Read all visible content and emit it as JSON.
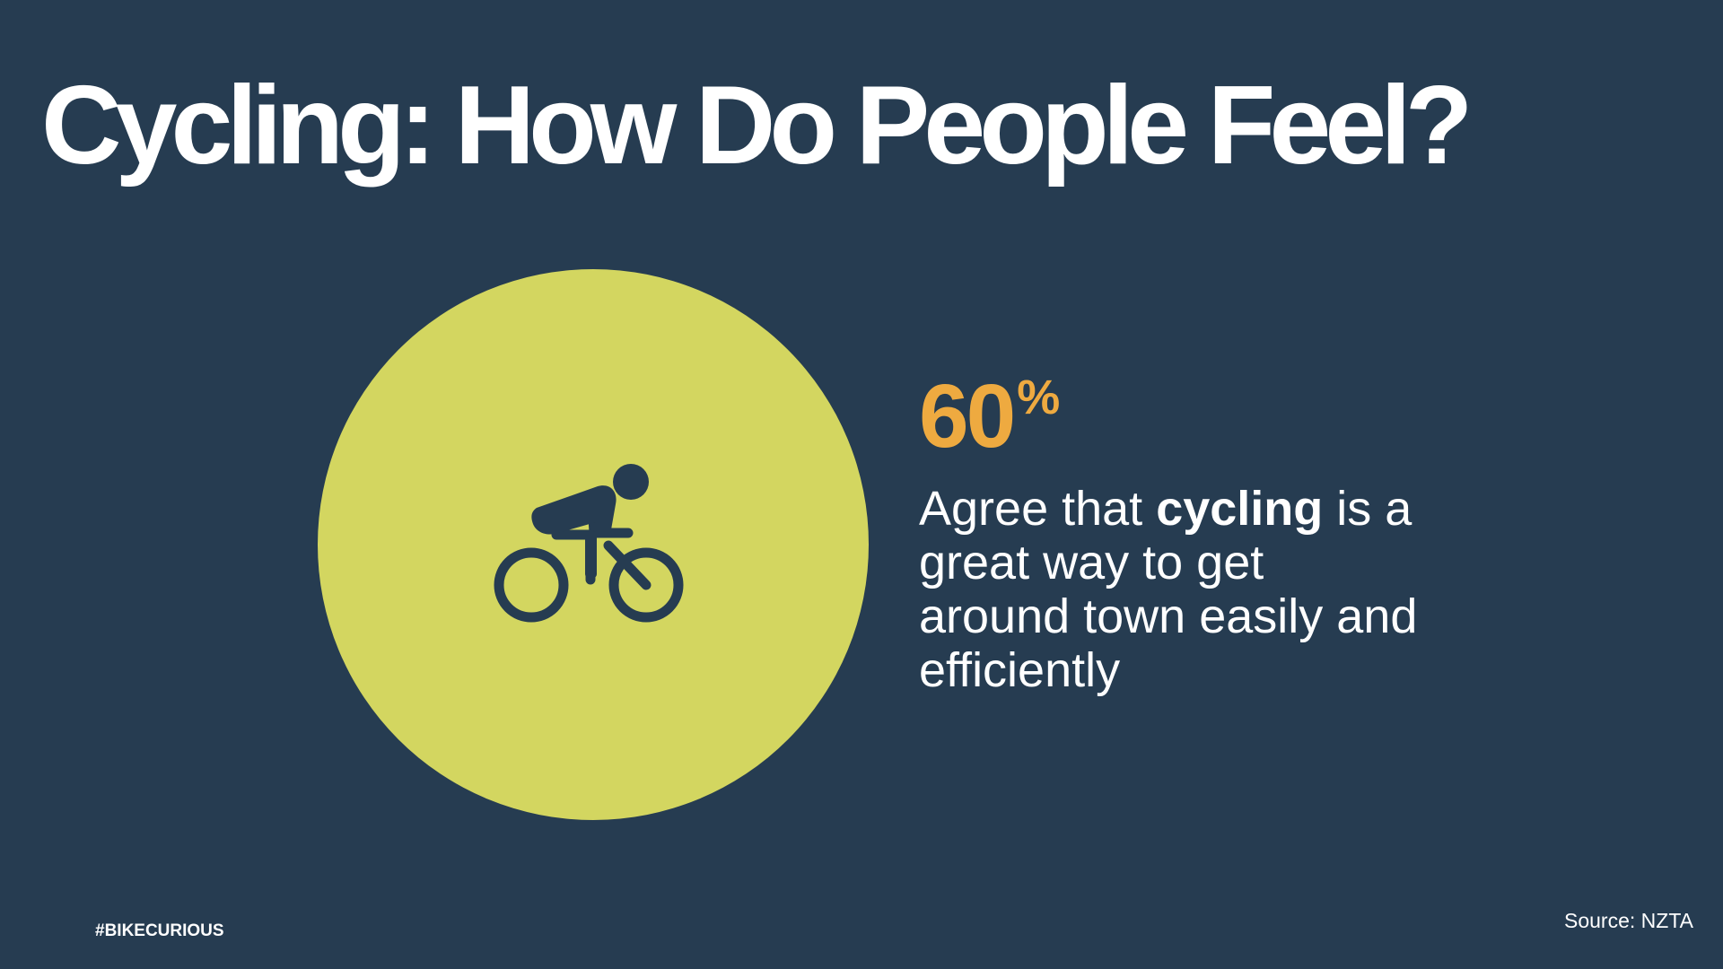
{
  "slide": {
    "title": "Cycling: How Do People Feel?",
    "stat": {
      "value": "60",
      "unit": "%",
      "description_parts": [
        "Agree that ",
        "cycling",
        " is a great way to get around town easily and efficiently"
      ]
    },
    "hashtag": "#BIKECURIOUS",
    "source": "Source: NZTA",
    "icon": "cyclist-icon"
  },
  "colors": {
    "background": "#263c51",
    "circle": "#d3d660",
    "stat_accent": "#eeaa40",
    "icon": "#263c51",
    "text": "#ffffff"
  }
}
